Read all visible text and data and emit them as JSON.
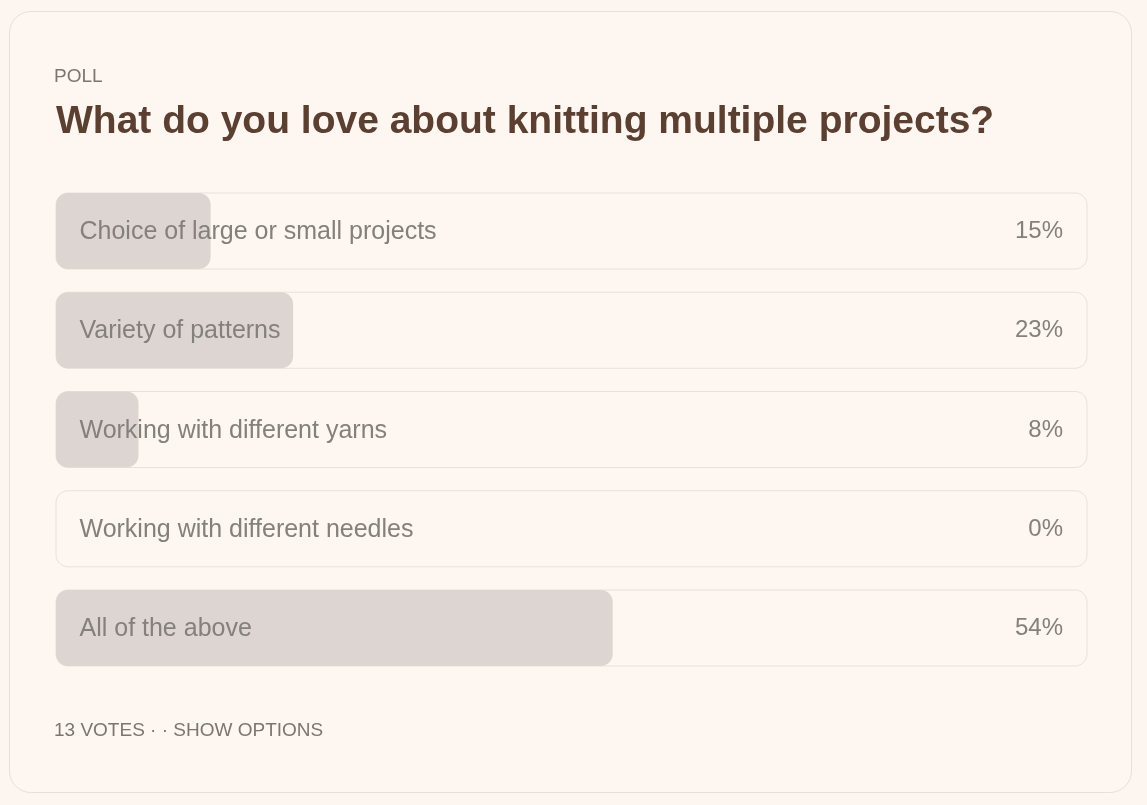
{
  "chart_data": {
    "type": "bar",
    "orientation": "horizontal",
    "title": "What do you love about knitting multiple projects?",
    "categories": [
      "Choice of large or small projects",
      "Variety of patterns",
      "Working with different yarns",
      "Working with different needles",
      "All of the above"
    ],
    "values": [
      15,
      23,
      8,
      0,
      54
    ],
    "value_labels": [
      "15%",
      "23%",
      "8%",
      "0%",
      "54%"
    ],
    "color": "#ddd5d1",
    "xlim": [
      0,
      100
    ],
    "tick_labels": "y",
    "annotations": [
      "POLL",
      "13 VOTES · · SHOW OPTIONS"
    ]
  }
}
